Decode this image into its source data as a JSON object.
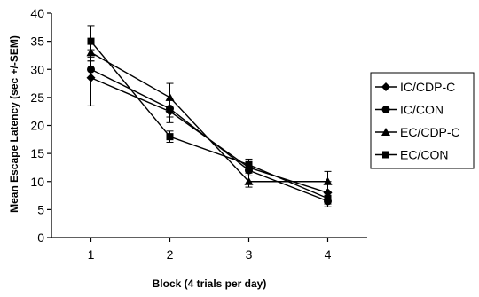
{
  "chart_data": {
    "type": "line",
    "title": "",
    "xlabel": "Block (4 trials per day)",
    "ylabel": "Mean Escape Latency (sec +/-SEM)",
    "x": [
      1,
      2,
      3,
      4
    ],
    "xlim": [
      0.5,
      4.5
    ],
    "ylim": [
      0,
      40
    ],
    "yticks": [
      0,
      5,
      10,
      15,
      20,
      25,
      30,
      35,
      40
    ],
    "grid": false,
    "legend_position": "right",
    "series": [
      {
        "name": "IC/CDP-C",
        "marker": "diamond",
        "values": [
          28.5,
          22.5,
          12.5,
          8.0
        ],
        "errors": [
          5.0,
          2.0,
          1.0,
          2.0
        ]
      },
      {
        "name": "IC/CON",
        "marker": "circle",
        "values": [
          30.0,
          23.0,
          12.0,
          6.5
        ],
        "errors": [
          1.5,
          1.5,
          1.0,
          1.0
        ]
      },
      {
        "name": "EC/CDP-C",
        "marker": "triangle",
        "values": [
          33.0,
          25.0,
          10.0,
          10.0
        ],
        "errors": [
          1.5,
          2.5,
          1.0,
          1.8
        ]
      },
      {
        "name": "EC/CON",
        "marker": "square",
        "values": [
          35.0,
          18.0,
          13.0,
          7.0
        ],
        "errors": [
          2.8,
          1.0,
          1.0,
          1.0
        ]
      }
    ]
  }
}
